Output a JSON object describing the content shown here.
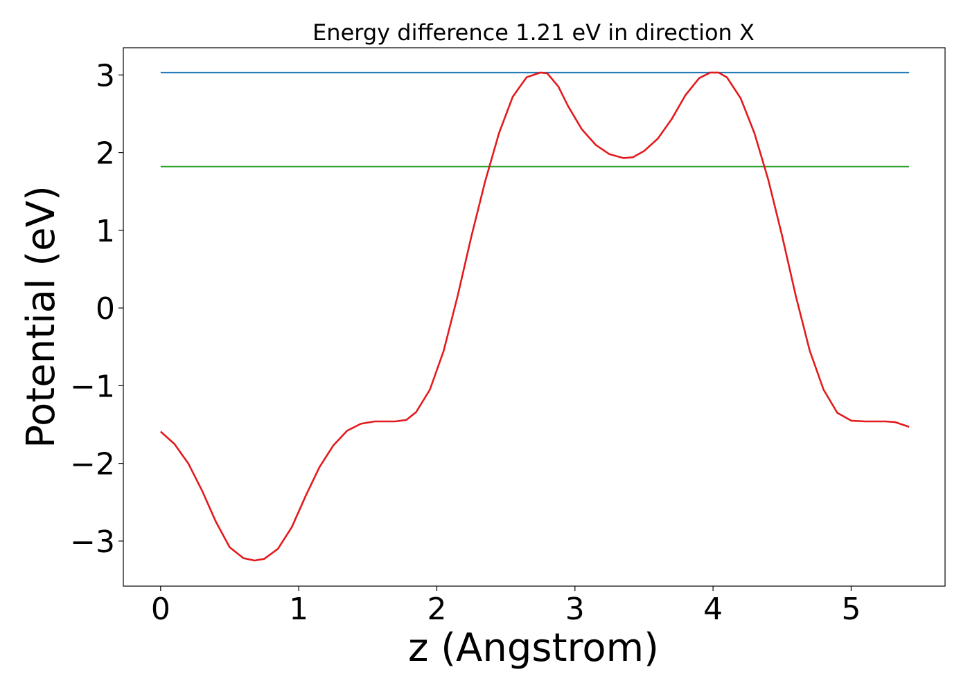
{
  "chart_data": {
    "type": "line",
    "title": "Energy difference 1.21 eV in direction X",
    "xlabel": "z (Angstrom)",
    "ylabel": "Potential (eV)",
    "xlim": [
      -0.27,
      5.68
    ],
    "ylim": [
      -3.58,
      3.35
    ],
    "xticks": [
      0,
      1,
      2,
      3,
      4,
      5
    ],
    "yticks": [
      -3,
      -2,
      -1,
      0,
      1,
      2,
      3
    ],
    "xtick_labels": [
      "0",
      "1",
      "2",
      "3",
      "4",
      "5"
    ],
    "ytick_labels": [
      "−3",
      "−2",
      "−1",
      "0",
      "1",
      "2",
      "3"
    ],
    "grid": false,
    "series": [
      {
        "color": "#1f77b4",
        "x": [
          0,
          5.42
        ],
        "y": [
          3.03,
          3.03
        ]
      },
      {
        "color": "#2ca02c",
        "x": [
          0,
          5.42
        ],
        "y": [
          1.82,
          1.82
        ]
      },
      {
        "color": "#e31a1c",
        "x": [
          0,
          0.1,
          0.2,
          0.3,
          0.4,
          0.5,
          0.6,
          0.68,
          0.75,
          0.85,
          0.95,
          1.05,
          1.15,
          1.25,
          1.35,
          1.45,
          1.55,
          1.62,
          1.7,
          1.78,
          1.85,
          1.95,
          2.05,
          2.15,
          2.25,
          2.35,
          2.45,
          2.55,
          2.65,
          2.75,
          2.8,
          2.88,
          2.95,
          3.05,
          3.15,
          3.25,
          3.35,
          3.42,
          3.5,
          3.6,
          3.7,
          3.8,
          3.9,
          3.98,
          4.04,
          4.1,
          4.2,
          4.3,
          4.4,
          4.5,
          4.6,
          4.7,
          4.8,
          4.9,
          5.0,
          5.1,
          5.18,
          5.25,
          5.32,
          5.42
        ],
        "y": [
          -1.59,
          -1.75,
          -2.0,
          -2.35,
          -2.75,
          -3.08,
          -3.22,
          -3.25,
          -3.23,
          -3.1,
          -2.82,
          -2.42,
          -2.05,
          -1.77,
          -1.58,
          -1.49,
          -1.46,
          -1.46,
          -1.46,
          -1.44,
          -1.34,
          -1.05,
          -0.55,
          0.15,
          0.92,
          1.63,
          2.25,
          2.72,
          2.97,
          3.03,
          3.02,
          2.85,
          2.6,
          2.3,
          2.1,
          1.98,
          1.93,
          1.94,
          2.02,
          2.18,
          2.43,
          2.74,
          2.96,
          3.03,
          3.03,
          2.97,
          2.7,
          2.25,
          1.65,
          0.93,
          0.15,
          -0.55,
          -1.05,
          -1.35,
          -1.45,
          -1.46,
          -1.46,
          -1.46,
          -1.47,
          -1.53
        ]
      }
    ]
  }
}
